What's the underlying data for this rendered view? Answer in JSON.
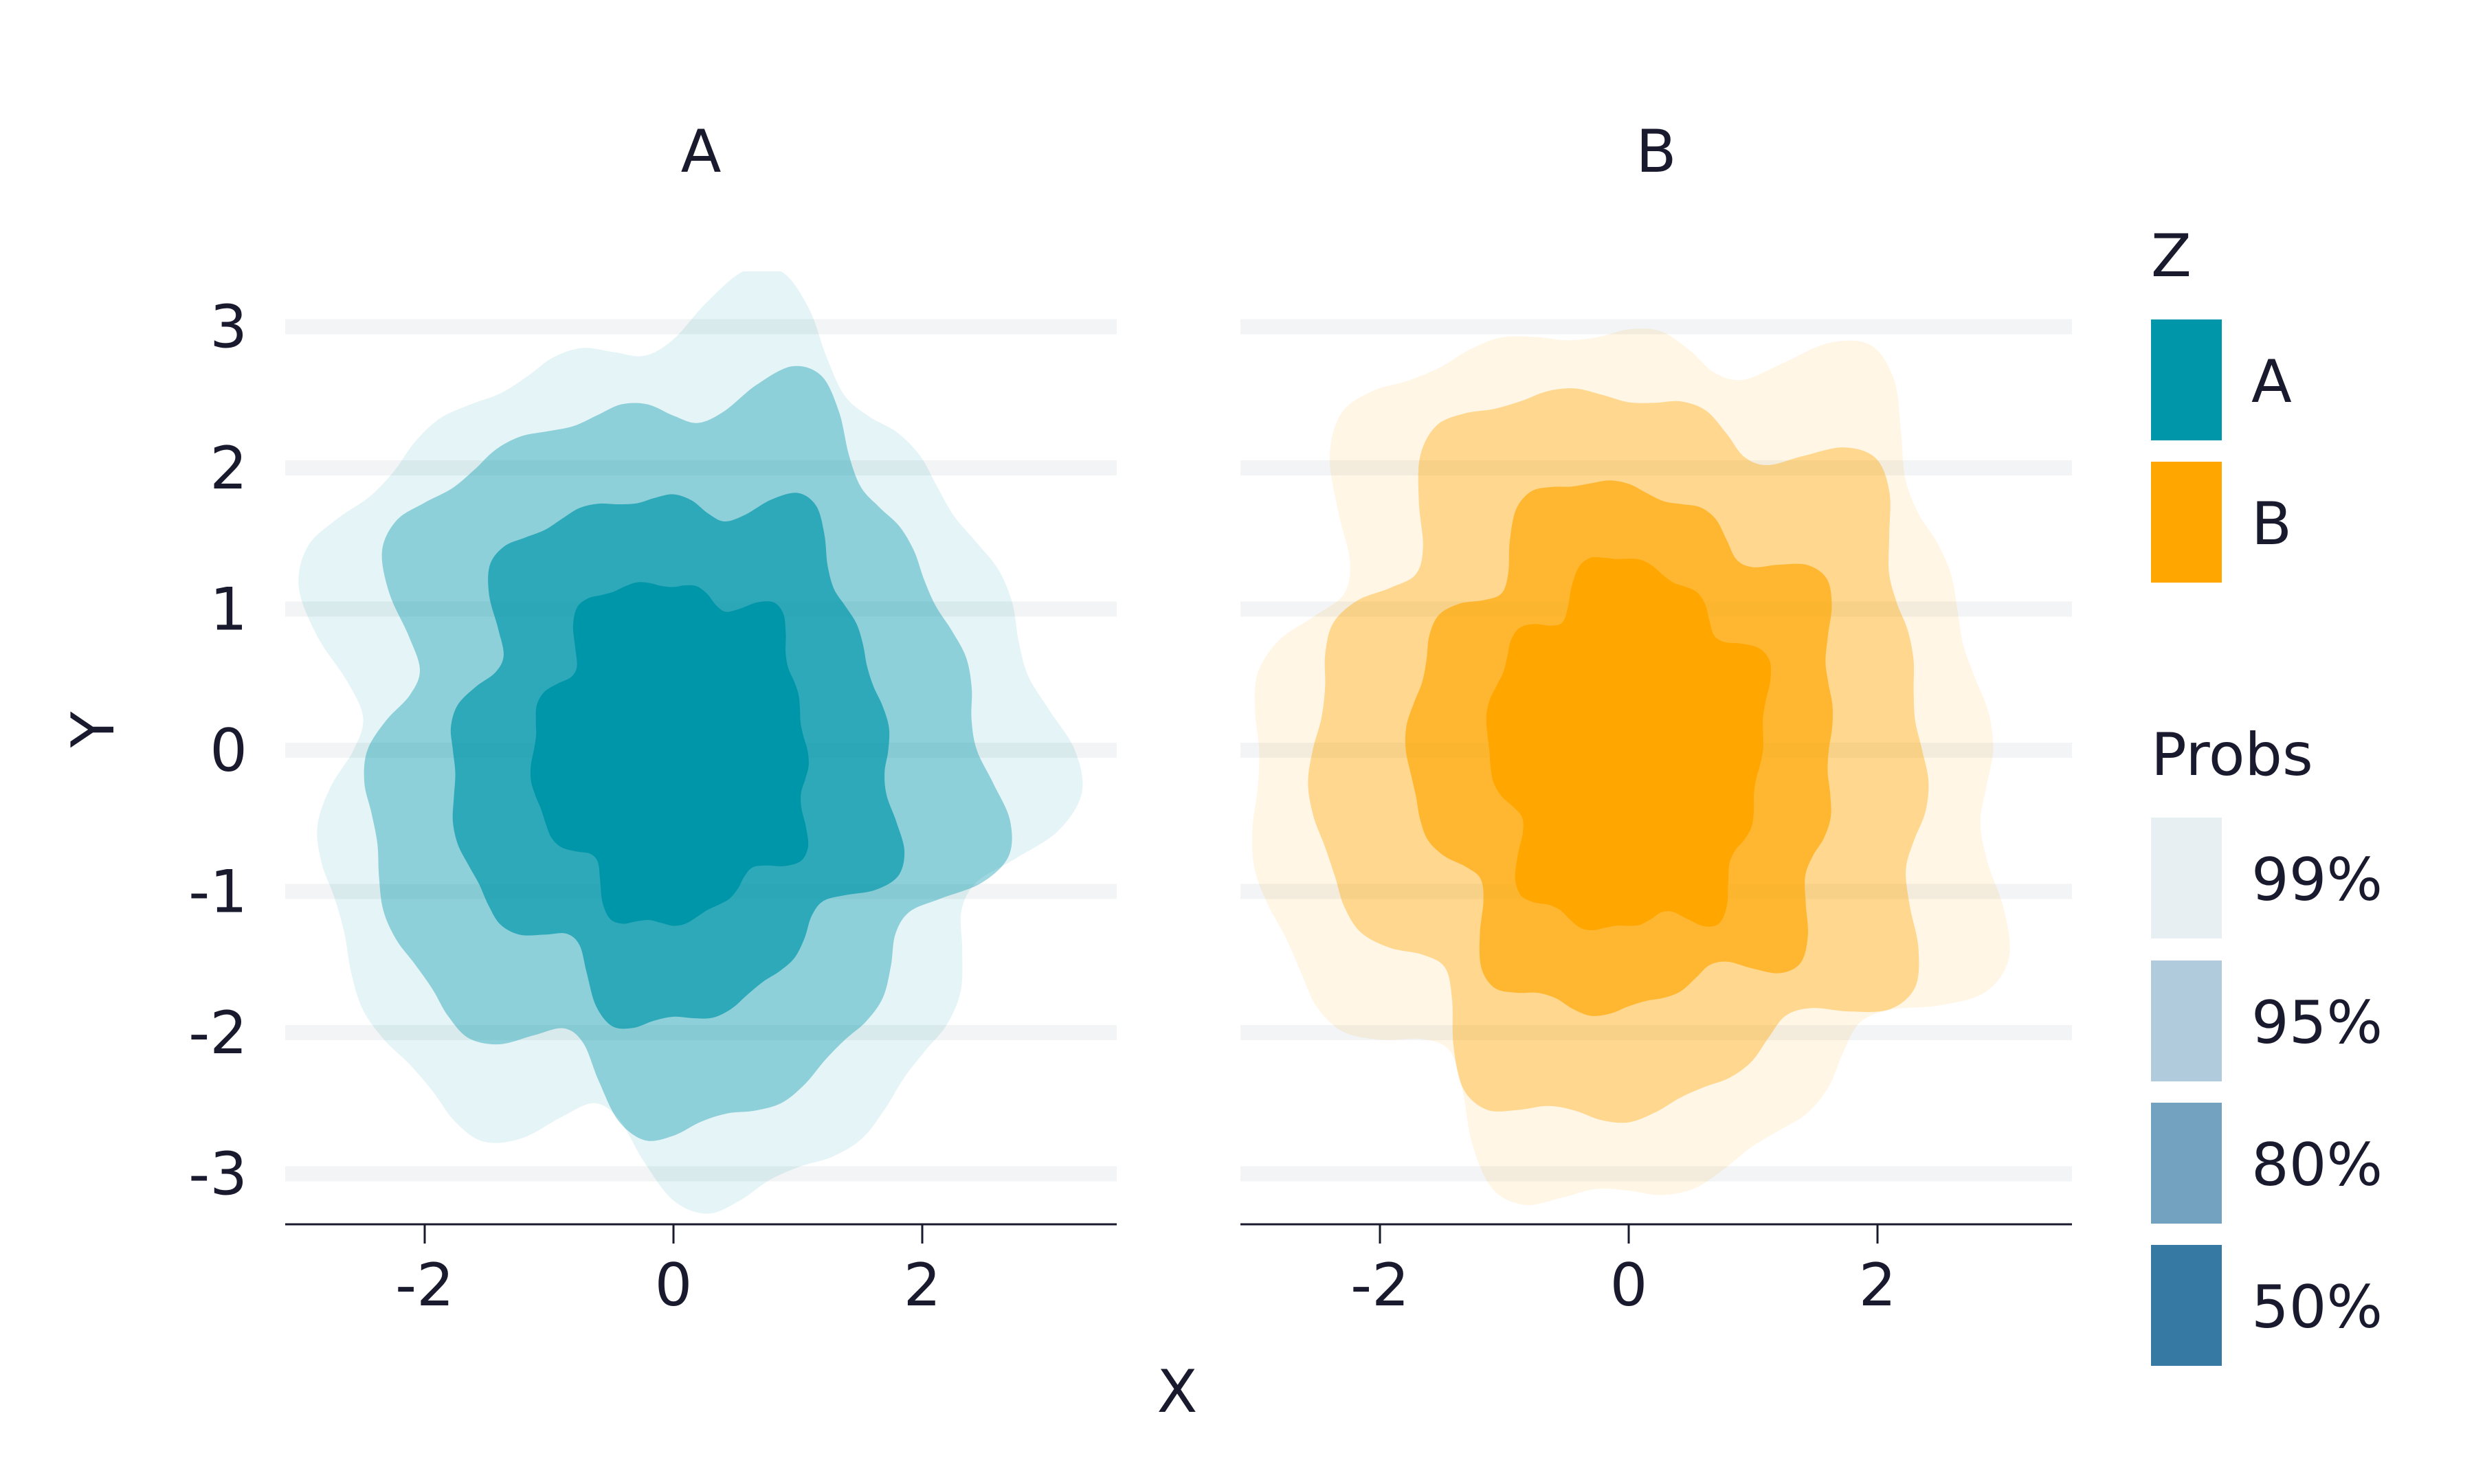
{
  "chart_data": {
    "type": "contour",
    "title": "",
    "xlabel": "X",
    "ylabel": "Y",
    "xlim": [
      -3.1,
      3.5
    ],
    "ylim": [
      -3.35,
      3.4
    ],
    "xticks": [
      -2,
      0,
      2
    ],
    "yticks": [
      3,
      2,
      1,
      0,
      -1,
      -2,
      -3
    ],
    "grid": "horizontal",
    "panels": [
      {
        "label": "A",
        "color": "#0096aa",
        "center": [
          0,
          0
        ],
        "levels": [
          {
            "prob": "99%",
            "radius": [
              2.9,
              3.05
            ],
            "opacity": 0.1
          },
          {
            "prob": "95%",
            "radius": [
              2.45,
              2.55
            ],
            "opacity": 0.38
          },
          {
            "prob": "80%",
            "radius": [
              1.75,
              1.85
            ],
            "opacity": 0.68
          },
          {
            "prob": "50%",
            "radius": [
              1.1,
              1.2
            ],
            "opacity": 1.0
          }
        ]
      },
      {
        "label": "B",
        "color": "#ffa600",
        "center": [
          0,
          0
        ],
        "levels": [
          {
            "prob": "99%",
            "radius": [
              2.95,
              3.05
            ],
            "opacity": 0.1
          },
          {
            "prob": "95%",
            "radius": [
              2.45,
              2.55
            ],
            "opacity": 0.38
          },
          {
            "prob": "80%",
            "radius": [
              1.7,
              1.85
            ],
            "opacity": 0.65
          },
          {
            "prob": "50%",
            "radius": [
              1.1,
              1.3
            ],
            "opacity": 1.0
          }
        ]
      }
    ],
    "legend": {
      "position": "right",
      "z": {
        "title": "Z",
        "items": [
          {
            "label": "A",
            "color": "#0096aa"
          },
          {
            "label": "B",
            "color": "#ffa600"
          }
        ]
      },
      "probs": {
        "title": "Probs",
        "items": [
          {
            "label": "99%",
            "color": "#e8eff2"
          },
          {
            "label": "95%",
            "color": "#b0cbdb"
          },
          {
            "label": "80%",
            "color": "#72a2bf"
          },
          {
            "label": "50%",
            "color": "#3679a3"
          }
        ]
      }
    }
  }
}
